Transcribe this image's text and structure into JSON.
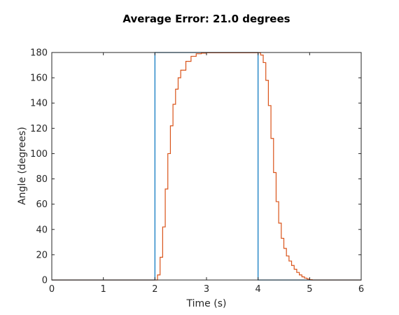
{
  "chart_data": {
    "type": "line",
    "title": "Average Error:  21.0 degrees",
    "xlabel": "Time (s)",
    "ylabel": "Angle (degrees)",
    "xlim": [
      0,
      6
    ],
    "ylim": [
      0,
      180
    ],
    "xticks": [
      "0",
      "1",
      "2",
      "3",
      "4",
      "5",
      "6"
    ],
    "yticks": [
      "0",
      "20",
      "40",
      "60",
      "80",
      "100",
      "120",
      "140",
      "160",
      "180"
    ],
    "grid": false,
    "series": [
      {
        "color": "#0072BD",
        "step": true,
        "x": [
          0,
          2,
          2,
          4,
          4,
          6
        ],
        "y": [
          0,
          0,
          180,
          180,
          0,
          0
        ]
      },
      {
        "color": "#D95319",
        "step": true,
        "x": [
          0,
          2.0,
          2.05,
          2.1,
          2.15,
          2.2,
          2.25,
          2.3,
          2.35,
          2.4,
          2.45,
          2.5,
          2.6,
          2.7,
          2.8,
          2.9,
          3.0,
          3.5,
          4.0,
          4.05,
          4.1,
          4.15,
          4.2,
          4.25,
          4.3,
          4.35,
          4.4,
          4.45,
          4.5,
          4.55,
          4.6,
          4.65,
          4.7,
          4.75,
          4.8,
          4.85,
          4.9,
          4.95,
          5.0,
          5.05,
          6
        ],
        "y": [
          0,
          0,
          4,
          18,
          42,
          72,
          100,
          122,
          139,
          151,
          160,
          166,
          173,
          177,
          179,
          179.5,
          179.8,
          179.8,
          179.8,
          178,
          172,
          158,
          138,
          112,
          85,
          62,
          45,
          33,
          25,
          19,
          15,
          11.5,
          8.5,
          6,
          4,
          2.5,
          1.5,
          0.8,
          0.3,
          0,
          0
        ]
      }
    ]
  }
}
